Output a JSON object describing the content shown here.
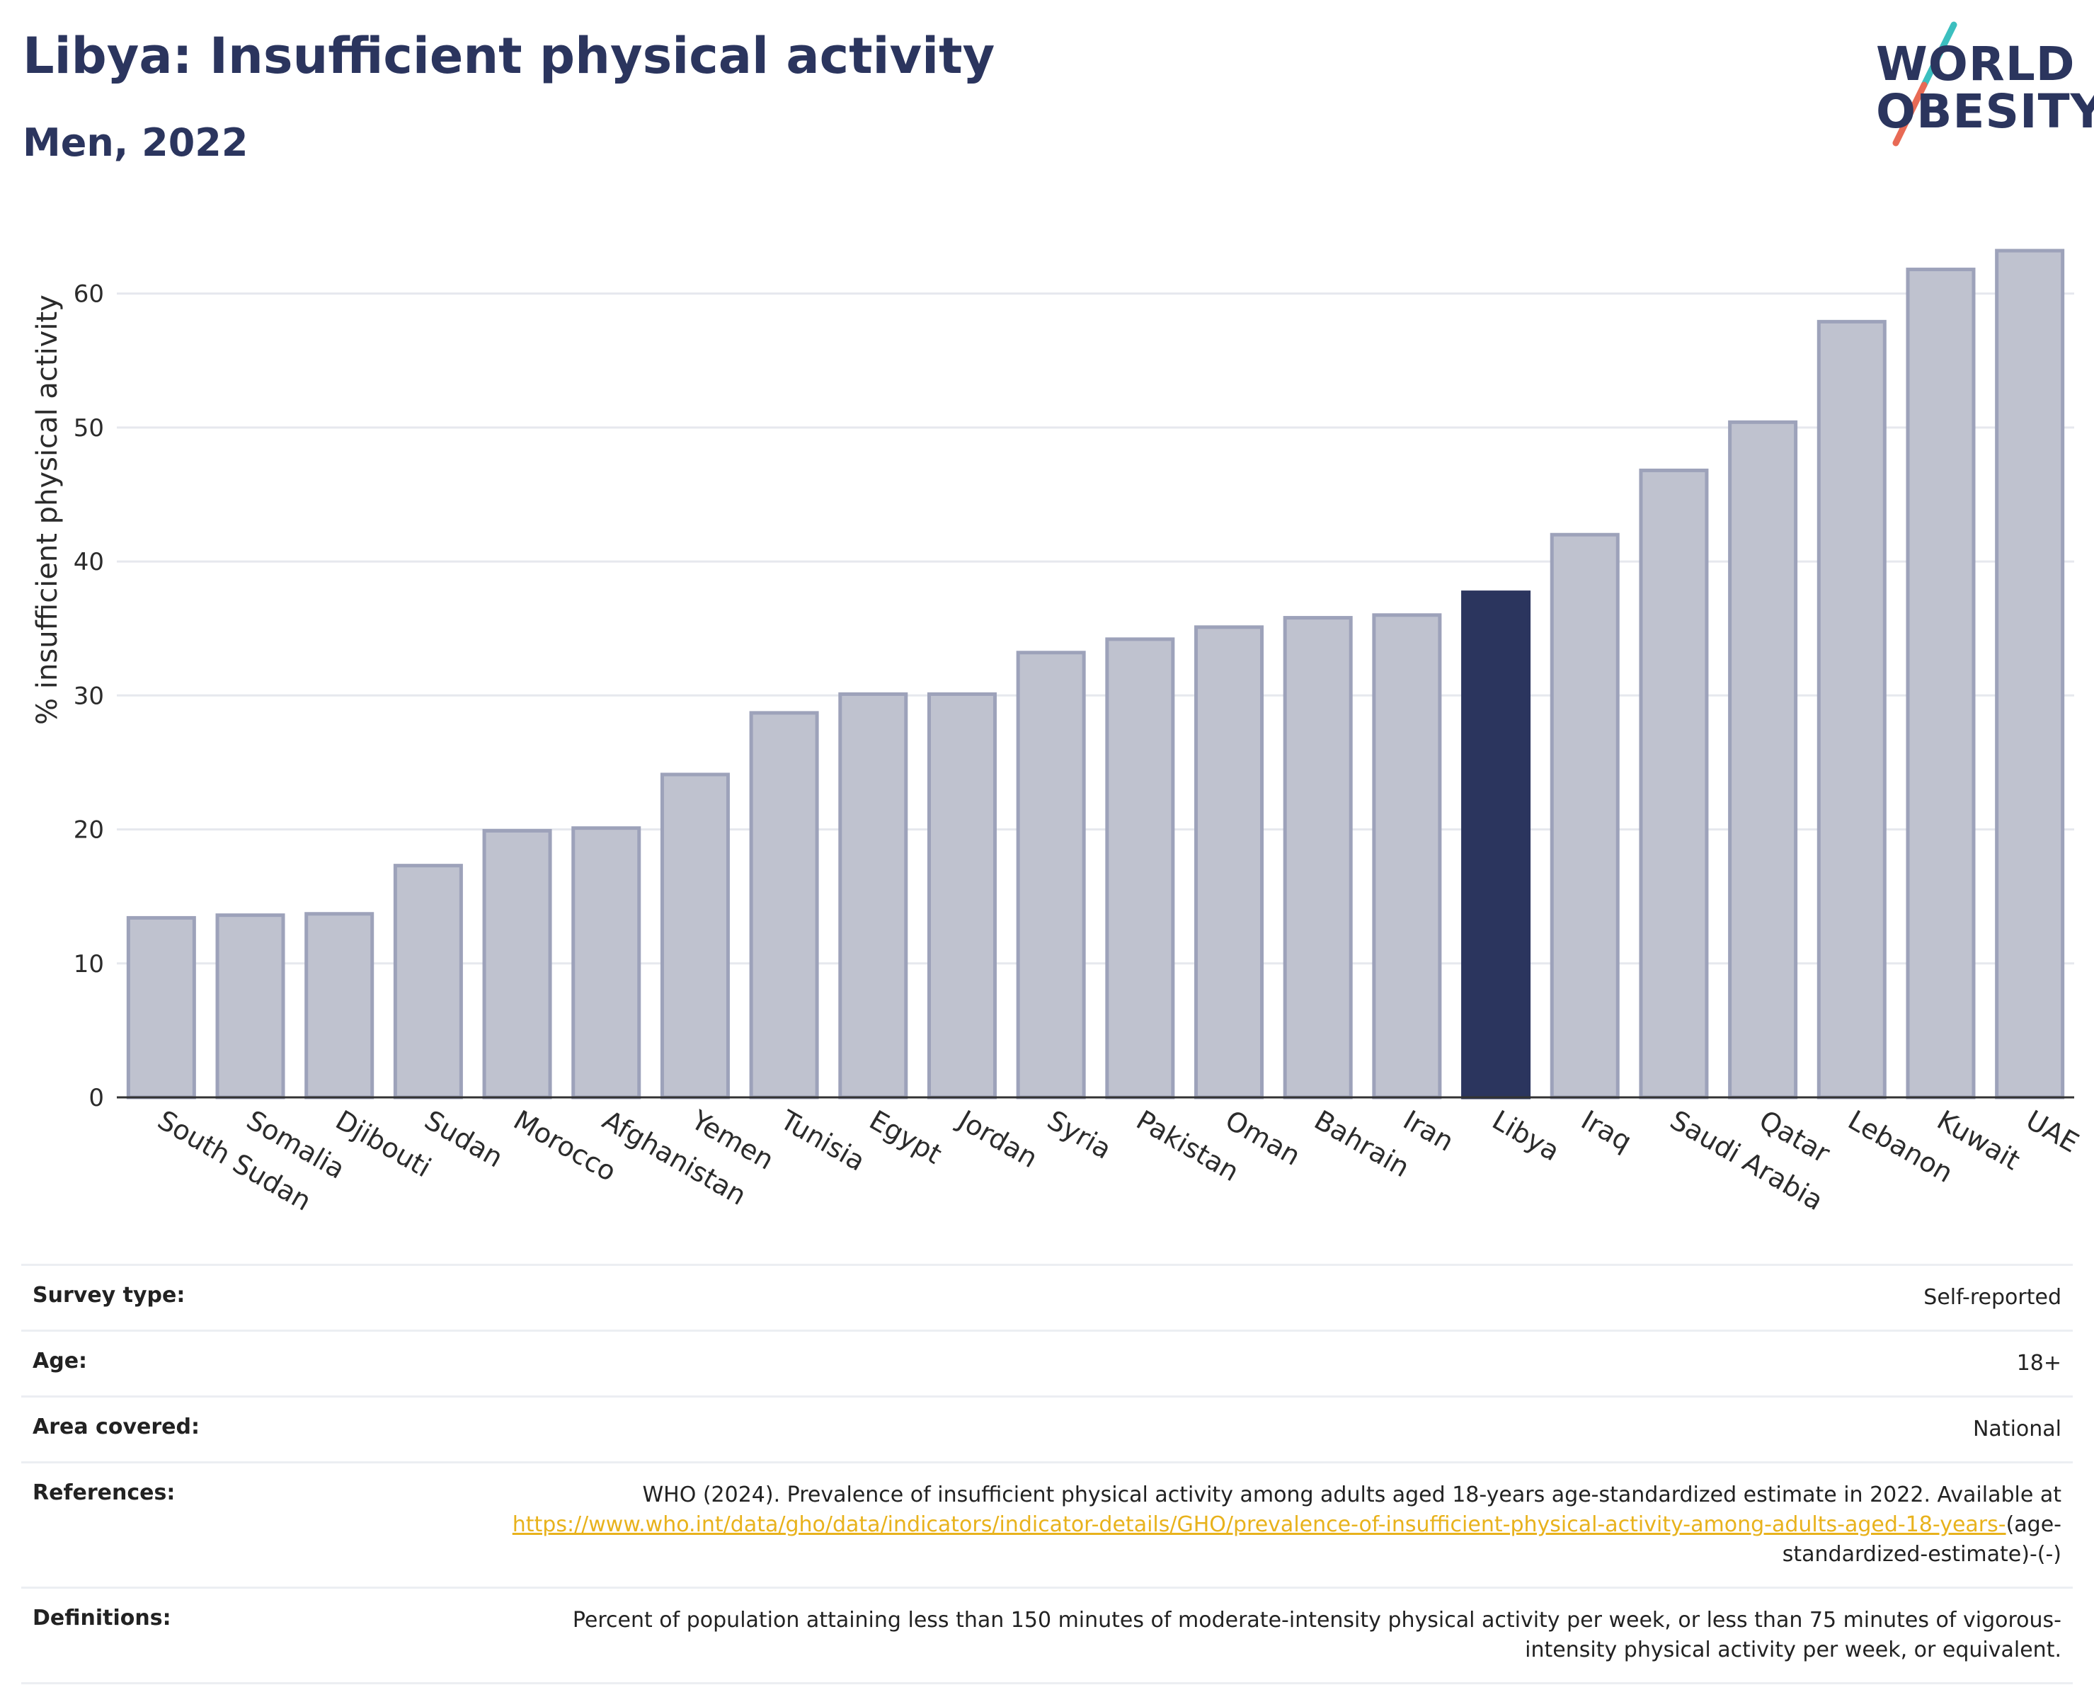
{
  "header": {
    "title": "Libya: Insufficient physical activity",
    "subtitle": "Men, 2022"
  },
  "logo": {
    "line1": "WORLD",
    "line2": "OBESITY",
    "colors": {
      "text": "#2b355e",
      "slash_top": "#3bbfbf",
      "slash_bottom": "#e86a55"
    }
  },
  "chart_data": {
    "type": "bar",
    "ylabel": "% insufficient physical activity",
    "xlabel": "",
    "ylim": [
      0,
      65
    ],
    "yticks": [
      0,
      10,
      20,
      30,
      40,
      50,
      60
    ],
    "grid": true,
    "highlight": "Libya",
    "colors": {
      "bar": "#bfc2cf",
      "bar_edge": "#9da2ba",
      "highlight": "#2b355e",
      "grid": "#e6e8ee"
    },
    "categories": [
      "South Sudan",
      "Somalia",
      "Djibouti",
      "Sudan",
      "Morocco",
      "Afghanistan",
      "Yemen",
      "Tunisia",
      "Egypt",
      "Jordan",
      "Syria",
      "Pakistan",
      "Oman",
      "Bahrain",
      "Iran",
      "Libya",
      "Iraq",
      "Saudi Arabia",
      "Qatar",
      "Lebanon",
      "Kuwait",
      "UAE"
    ],
    "values": [
      13.4,
      13.6,
      13.7,
      17.3,
      19.9,
      20.1,
      24.1,
      28.7,
      30.1,
      30.1,
      33.2,
      34.2,
      35.1,
      35.8,
      36.0,
      37.7,
      42.0,
      46.8,
      50.4,
      57.9,
      61.8,
      63.2
    ]
  },
  "info": {
    "rows": [
      {
        "label": "Survey type:",
        "value": "Self-reported"
      },
      {
        "label": "Age:",
        "value": "18+"
      },
      {
        "label": "Area covered:",
        "value": "National"
      }
    ],
    "references": {
      "label": "References:",
      "text": "WHO (2024). Prevalence of insufficient physical activity among adults aged 18-years age-standardized estimate in 2022. Available at ",
      "link": "https://www.who.int/data/gho/data/indicators/indicator-details/GHO/prevalence-of-insufficient-physical-activity-among-adults-aged-18-years-",
      "suffix": "(age-standardized-estimate)-(-)"
    },
    "definitions": {
      "label": "Definitions:",
      "value": "Percent of population attaining less than 150 minutes of moderate-intensity physical activity per week, or less than 75 minutes of vigorous-intensity physical activity per week, or equivalent."
    }
  }
}
